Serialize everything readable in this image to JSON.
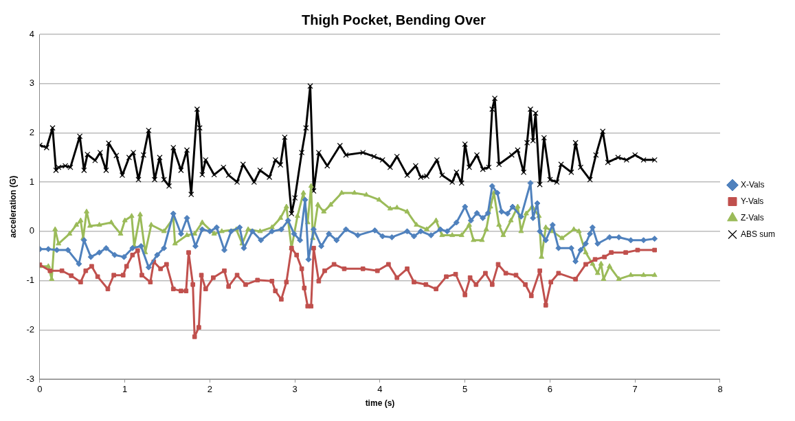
{
  "chart_data": {
    "type": "line",
    "title": "Thigh Pocket, Bending Over",
    "xlabel": "time (s)",
    "ylabel": "acceleration (G)",
    "xlim": [
      0,
      8
    ],
    "xticks": [
      0,
      1,
      2,
      3,
      4,
      5,
      6,
      7,
      8
    ],
    "ylim": [
      -3,
      4
    ],
    "yticks": [
      -3,
      -2,
      -1,
      0,
      1,
      2,
      3,
      4
    ],
    "grid": "y",
    "legend": "right",
    "line_style": "solid",
    "series": [
      {
        "name": "X-Vals",
        "color": "#4f81bd",
        "marker": "diamond",
        "x": [
          0,
          0.1,
          0.2,
          0.33,
          0.46,
          0.52,
          0.6,
          0.7,
          0.78,
          0.88,
          0.99,
          1.09,
          1.19,
          1.28,
          1.38,
          1.46,
          1.57,
          1.66,
          1.73,
          1.83,
          1.91,
          2.0,
          2.08,
          2.17,
          2.25,
          2.35,
          2.4,
          2.5,
          2.6,
          2.73,
          2.84,
          2.92,
          2.99,
          3.06,
          3.12,
          3.16,
          3.22,
          3.31,
          3.4,
          3.49,
          3.6,
          3.74,
          3.94,
          4.03,
          4.14,
          4.32,
          4.4,
          4.48,
          4.6,
          4.71,
          4.79,
          4.9,
          5.0,
          5.07,
          5.14,
          5.21,
          5.27,
          5.32,
          5.38,
          5.43,
          5.5,
          5.56,
          5.66,
          5.77,
          5.8,
          5.85,
          5.88,
          5.95,
          6.03,
          6.1,
          6.25,
          6.3,
          6.36,
          6.42,
          6.47,
          6.5,
          6.56,
          6.7,
          6.81,
          6.95,
          7.1,
          7.23
        ],
        "values": [
          -0.36,
          -0.36,
          -0.38,
          -0.38,
          -0.66,
          -0.18,
          -0.52,
          -0.43,
          -0.34,
          -0.48,
          -0.52,
          -0.34,
          -0.3,
          -0.73,
          -0.48,
          -0.34,
          0.36,
          -0.05,
          0.27,
          -0.3,
          0.04,
          0.0,
          0.08,
          -0.38,
          0.0,
          0.08,
          -0.34,
          0.0,
          -0.18,
          0.0,
          0.04,
          0.22,
          -0.05,
          -0.18,
          0.64,
          -0.57,
          0.04,
          -0.3,
          -0.05,
          -0.18,
          0.04,
          -0.08,
          0.02,
          -0.1,
          -0.12,
          0.0,
          -0.1,
          0.0,
          -0.08,
          0.04,
          0.0,
          0.18,
          0.5,
          0.22,
          0.37,
          0.27,
          0.37,
          0.92,
          0.78,
          0.4,
          0.36,
          0.5,
          0.3,
          0.98,
          0.27,
          0.57,
          0.0,
          -0.18,
          0.13,
          -0.34,
          -0.34,
          -0.61,
          -0.38,
          -0.25,
          -0.05,
          0.08,
          -0.25,
          -0.12,
          -0.12,
          -0.18,
          -0.18,
          -0.15
        ]
      },
      {
        "name": "Y-Vals",
        "color": "#c0504d",
        "marker": "square",
        "x": [
          0,
          0.12,
          0.26,
          0.37,
          0.48,
          0.54,
          0.61,
          0.68,
          0.8,
          0.87,
          0.98,
          1.02,
          1.09,
          1.15,
          1.2,
          1.3,
          1.34,
          1.42,
          1.49,
          1.57,
          1.66,
          1.72,
          1.75,
          1.8,
          1.82,
          1.87,
          1.9,
          1.95,
          2.04,
          2.17,
          2.22,
          2.32,
          2.42,
          2.56,
          2.73,
          2.77,
          2.84,
          2.9,
          2.96,
          3.02,
          3.08,
          3.11,
          3.15,
          3.19,
          3.22,
          3.28,
          3.35,
          3.46,
          3.58,
          3.8,
          3.97,
          4.1,
          4.2,
          4.32,
          4.4,
          4.54,
          4.66,
          4.78,
          4.89,
          5.0,
          5.06,
          5.13,
          5.24,
          5.32,
          5.39,
          5.48,
          5.6,
          5.71,
          5.78,
          5.88,
          5.95,
          6.01,
          6.1,
          6.3,
          6.42,
          6.53,
          6.64,
          6.72,
          6.89,
          7.03,
          7.23
        ],
        "values": [
          -0.68,
          -0.8,
          -0.8,
          -0.9,
          -1.03,
          -0.8,
          -0.71,
          -0.92,
          -1.17,
          -0.89,
          -0.89,
          -0.71,
          -0.48,
          -0.39,
          -0.89,
          -1.03,
          -0.62,
          -0.76,
          -0.67,
          -1.17,
          -1.21,
          -1.21,
          -0.43,
          -1.08,
          -2.14,
          -1.95,
          -0.89,
          -1.17,
          -0.94,
          -0.8,
          -1.12,
          -0.89,
          -1.08,
          -0.99,
          -1.01,
          -1.21,
          -1.38,
          -1.03,
          -0.34,
          -0.48,
          -0.76,
          -1.15,
          -1.52,
          -1.52,
          -0.34,
          -1.01,
          -0.8,
          -0.67,
          -0.76,
          -0.76,
          -0.8,
          -0.67,
          -0.94,
          -0.76,
          -1.03,
          -1.08,
          -1.17,
          -0.92,
          -0.87,
          -1.29,
          -0.94,
          -1.08,
          -0.85,
          -1.08,
          -0.67,
          -0.85,
          -0.89,
          -1.08,
          -1.31,
          -0.8,
          -1.5,
          -1.03,
          -0.85,
          -0.97,
          -0.67,
          -0.57,
          -0.52,
          -0.43,
          -0.43,
          -0.38,
          -0.38
        ]
      },
      {
        "name": "Z-Vals",
        "color": "#9bbb59",
        "marker": "triangle",
        "x": [
          0,
          0.1,
          0.14,
          0.18,
          0.22,
          0.35,
          0.43,
          0.48,
          0.51,
          0.55,
          0.59,
          0.7,
          0.84,
          0.95,
          1.0,
          1.08,
          1.11,
          1.18,
          1.24,
          1.31,
          1.46,
          1.57,
          1.59,
          1.73,
          1.82,
          1.91,
          2.05,
          2.14,
          2.31,
          2.38,
          2.45,
          2.59,
          2.73,
          2.83,
          2.9,
          2.96,
          3.03,
          3.1,
          3.15,
          3.19,
          3.21,
          3.27,
          3.34,
          3.42,
          3.55,
          3.7,
          3.84,
          3.99,
          4.12,
          4.2,
          4.32,
          4.43,
          4.55,
          4.66,
          4.73,
          4.85,
          4.96,
          5.05,
          5.1,
          5.2,
          5.25,
          5.3,
          5.34,
          5.4,
          5.45,
          5.54,
          5.62,
          5.66,
          5.72,
          5.79,
          5.87,
          5.9,
          5.95,
          6.03,
          6.14,
          6.28,
          6.34,
          6.42,
          6.5,
          6.56,
          6.6,
          6.63,
          6.7,
          6.81,
          6.95,
          7.1,
          7.23
        ],
        "values": [
          -0.71,
          -0.71,
          -0.97,
          0.04,
          -0.25,
          -0.05,
          0.13,
          0.22,
          -0.14,
          0.4,
          0.11,
          0.13,
          0.18,
          -0.05,
          0.22,
          0.31,
          -0.3,
          0.34,
          -0.43,
          0.13,
          0.0,
          0.27,
          -0.25,
          -0.08,
          -0.05,
          0.18,
          -0.05,
          0.0,
          0.04,
          -0.25,
          0.04,
          0.0,
          0.08,
          0.27,
          0.5,
          -0.34,
          0.31,
          0.78,
          0.18,
          0.92,
          -0.14,
          0.54,
          0.4,
          0.54,
          0.78,
          0.78,
          0.74,
          0.64,
          0.46,
          0.48,
          0.4,
          0.13,
          0.04,
          0.22,
          -0.08,
          -0.08,
          -0.08,
          0.13,
          -0.18,
          -0.18,
          0.04,
          0.5,
          0.78,
          0.13,
          -0.08,
          0.22,
          0.5,
          0.0,
          0.36,
          0.5,
          0.31,
          -0.52,
          0.08,
          0.0,
          -0.14,
          0.04,
          0.0,
          -0.43,
          -0.66,
          -0.85,
          -0.66,
          -0.97,
          -0.71,
          -0.97,
          -0.89,
          -0.89,
          -0.89
        ]
      },
      {
        "name": "ABS sum",
        "color": "#000000",
        "marker": "cross",
        "x": [
          0,
          0.08,
          0.15,
          0.19,
          0.22,
          0.3,
          0.36,
          0.47,
          0.52,
          0.56,
          0.65,
          0.71,
          0.78,
          0.81,
          0.9,
          0.97,
          1.05,
          1.1,
          1.16,
          1.22,
          1.28,
          1.35,
          1.41,
          1.46,
          1.52,
          1.57,
          1.66,
          1.73,
          1.78,
          1.85,
          1.88,
          1.91,
          1.95,
          2.05,
          2.16,
          2.22,
          2.32,
          2.39,
          2.52,
          2.59,
          2.7,
          2.77,
          2.83,
          2.88,
          2.96,
          3.0,
          3.08,
          3.13,
          3.18,
          3.22,
          3.28,
          3.38,
          3.53,
          3.6,
          3.8,
          3.93,
          4.03,
          4.12,
          4.2,
          4.32,
          4.42,
          4.48,
          4.55,
          4.67,
          4.73,
          4.85,
          4.9,
          4.96,
          5.0,
          5.05,
          5.14,
          5.21,
          5.28,
          5.32,
          5.35,
          5.4,
          5.55,
          5.62,
          5.69,
          5.73,
          5.77,
          5.8,
          5.83,
          5.88,
          5.93,
          6.0,
          6.08,
          6.13,
          6.25,
          6.3,
          6.36,
          6.47,
          6.54,
          6.62,
          6.68,
          6.8,
          6.9,
          7.0,
          7.1,
          7.23
        ],
        "values": [
          1.75,
          1.7,
          2.1,
          1.24,
          1.3,
          1.33,
          1.3,
          1.93,
          1.24,
          1.56,
          1.44,
          1.6,
          1.24,
          1.79,
          1.54,
          1.14,
          1.5,
          1.6,
          1.05,
          1.55,
          2.05,
          1.05,
          1.5,
          1.05,
          0.92,
          1.7,
          1.24,
          1.65,
          0.75,
          2.48,
          2.1,
          1.15,
          1.45,
          1.15,
          1.3,
          1.14,
          1.0,
          1.36,
          1.0,
          1.24,
          1.1,
          1.45,
          1.35,
          1.91,
          0.36,
          0.68,
          1.6,
          2.1,
          2.95,
          0.82,
          1.6,
          1.33,
          1.74,
          1.55,
          1.6,
          1.52,
          1.45,
          1.3,
          1.52,
          1.14,
          1.33,
          1.1,
          1.12,
          1.45,
          1.14,
          1.0,
          1.2,
          0.98,
          1.77,
          1.3,
          1.55,
          1.26,
          1.3,
          2.48,
          2.7,
          1.36,
          1.55,
          1.65,
          1.2,
          1.8,
          2.48,
          1.84,
          2.4,
          0.95,
          1.9,
          1.05,
          1.0,
          1.36,
          1.2,
          1.8,
          1.3,
          1.05,
          1.55,
          2.03,
          1.4,
          1.5,
          1.45,
          1.55,
          1.45,
          1.45
        ]
      }
    ]
  }
}
